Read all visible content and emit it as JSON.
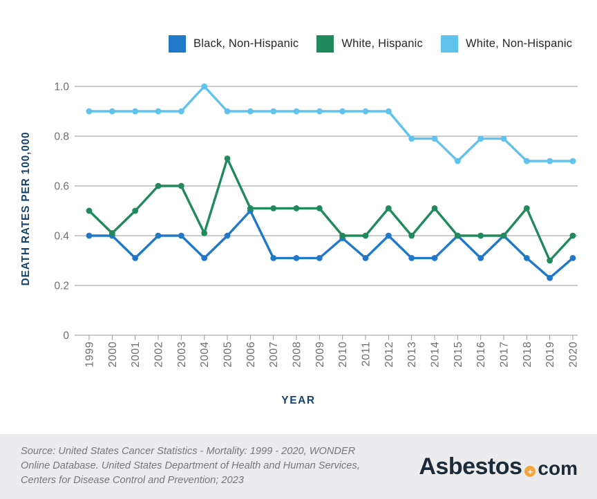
{
  "chart_data": {
    "type": "line",
    "title": "",
    "xlabel": "YEAR",
    "ylabel": "DEATH RATES PER 100,000",
    "x": [
      "1999",
      "2000",
      "2001",
      "2002",
      "2003",
      "2004",
      "2005",
      "2006",
      "2007",
      "2008",
      "2009",
      "2010",
      "2011",
      "2012",
      "2013",
      "2014",
      "2015",
      "2016",
      "2017",
      "2018",
      "2019",
      "2020"
    ],
    "series": [
      {
        "name": "Black, Non-Hispanic",
        "color": "#1f78c8",
        "values": [
          0.4,
          0.4,
          0.31,
          0.4,
          0.4,
          0.31,
          0.4,
          0.5,
          0.31,
          0.31,
          0.31,
          0.39,
          0.31,
          0.4,
          0.31,
          0.31,
          0.4,
          0.31,
          0.4,
          0.31,
          0.23,
          0.31
        ]
      },
      {
        "name": "White, Hispanic",
        "color": "#208a5c",
        "values": [
          0.5,
          0.41,
          0.5,
          0.6,
          0.6,
          0.41,
          0.71,
          0.51,
          0.51,
          0.51,
          0.51,
          0.4,
          0.4,
          0.51,
          0.4,
          0.51,
          0.4,
          0.4,
          0.4,
          0.51,
          0.3,
          0.4
        ]
      },
      {
        "name": "White, Non-Hispanic",
        "color": "#5fc3ed",
        "values": [
          0.9,
          0.9,
          0.9,
          0.9,
          0.9,
          1.0,
          0.9,
          0.9,
          0.9,
          0.9,
          0.9,
          0.9,
          0.9,
          0.9,
          0.79,
          0.79,
          0.7,
          0.79,
          0.79,
          0.7,
          0.7,
          0.7
        ]
      }
    ],
    "ylim": [
      0,
      1.0
    ],
    "yticks": [
      1.0,
      0.8,
      0.6,
      0.4,
      0.2,
      0
    ],
    "ytick_labels": [
      "1.0",
      "0.8",
      "0.6",
      "0.4",
      "0.2",
      "0"
    ],
    "grid": true,
    "legend_position": "top",
    "colors": {
      "grid_line": "#98989d",
      "tick_label": "#6e6e74",
      "axis_title": "#16436e"
    }
  },
  "footer": {
    "source_lines": [
      "Source: United States Cancer Statistics - Mortality: 1999 - 2020, WONDER",
      "Online Database. United States Department of Health and Human Services,",
      "Centers for Disease Control and Prevention; 2023"
    ],
    "logo": {
      "name": "Asbestos",
      "separator_icon": "+",
      "tld": "com",
      "accent_color": "#f5a53c",
      "text_color": "#1c2b3a"
    }
  }
}
